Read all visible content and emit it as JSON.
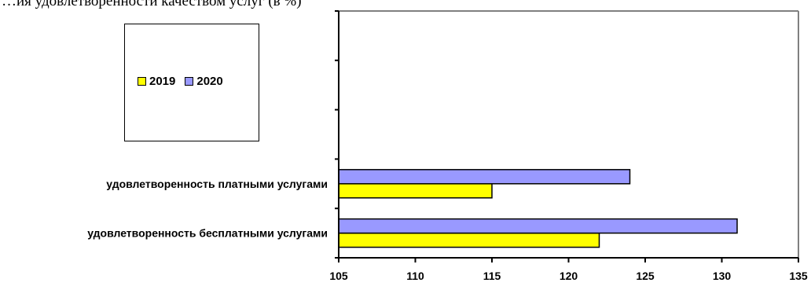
{
  "header_text": "…ия удовлетворенности качеством услуг (в %)",
  "legend": {
    "items": [
      {
        "label": "2019",
        "color": "#ffff00"
      },
      {
        "label": "2020",
        "color": "#9999ff"
      }
    ]
  },
  "chart_data": {
    "type": "bar",
    "orientation": "horizontal",
    "categories": [
      "удовлетворенность бесплатными услугами",
      "удовлетворенность платными услугами",
      "",
      "",
      ""
    ],
    "series": [
      {
        "name": "2019",
        "values": [
          122,
          115,
          null,
          null,
          null
        ],
        "color": "#ffff00"
      },
      {
        "name": "2020",
        "values": [
          131,
          124,
          null,
          null,
          null
        ],
        "color": "#9999ff"
      }
    ],
    "xlim": [
      105,
      135
    ],
    "xticks": [
      "105",
      "110",
      "115",
      "120",
      "125",
      "130",
      "135"
    ],
    "title": "",
    "xlabel": "",
    "ylabel": "",
    "grid": false,
    "legend_position": "top-left"
  }
}
